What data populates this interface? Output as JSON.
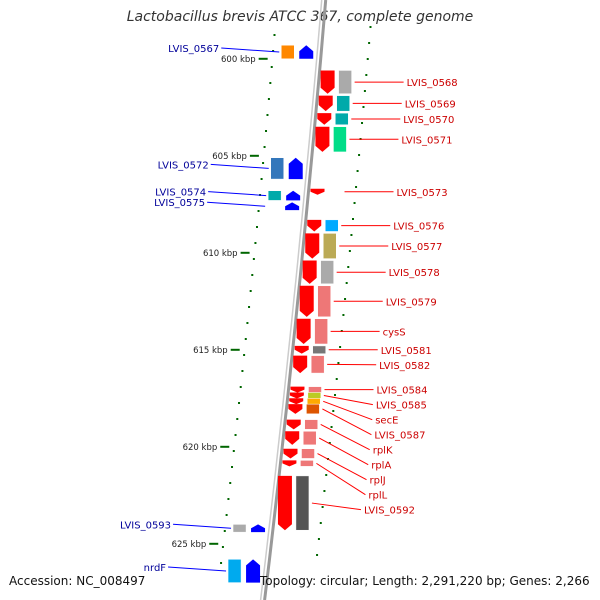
{
  "title": "Lactobacillus brevis ATCC 367, complete genome",
  "footer": {
    "accession": "Accession: NC_008497",
    "topology": "Topology: circular; Length: 2,291,220 bp; Genes: 2,266"
  },
  "scale": [
    {
      "label": "600 kbp",
      "kbp": 600
    },
    {
      "label": "605 kbp",
      "kbp": 605
    },
    {
      "label": "610 kbp",
      "kbp": 610
    },
    {
      "label": "615 kbp",
      "kbp": 615
    },
    {
      "label": "620 kbp",
      "kbp": 620
    },
    {
      "label": "625 kbp",
      "kbp": 625
    }
  ],
  "colors": {
    "forward_gene": "#ff0000",
    "reverse_gene": "#0000ff",
    "forward_label": "#cc0000",
    "reverse_label": "#000099",
    "backbone": "#999999",
    "tick": "#006600"
  },
  "forward_genes": [
    {
      "label": "LVIS_0568",
      "start": 600.6,
      "end": 601.8,
      "cog": "#aaaaaa"
    },
    {
      "label": "LVIS_0569",
      "start": 601.9,
      "end": 602.7,
      "cog": "#00aaaa"
    },
    {
      "label": "LVIS_0570",
      "start": 602.8,
      "end": 603.4,
      "cog": "#00aaaa"
    },
    {
      "label": "LVIS_0571",
      "start": 603.5,
      "end": 604.8,
      "cog": "#00dd88"
    },
    {
      "label": "LVIS_0573",
      "start": 606.7,
      "end": 606.9,
      "cog": ""
    },
    {
      "label": "LVIS_0576",
      "start": 608.3,
      "end": 608.9,
      "cog": "#00aaff"
    },
    {
      "label": "LVIS_0577",
      "start": 609.0,
      "end": 610.3,
      "cog": "#bbaa55"
    },
    {
      "label": "LVIS_0578",
      "start": 610.4,
      "end": 611.6,
      "cog": "#aaaaaa"
    },
    {
      "label": "LVIS_0579",
      "start": 611.7,
      "end": 613.3,
      "cog": "#ee7777"
    },
    {
      "label": "cysS",
      "start": 613.4,
      "end": 614.7,
      "cog": "#ee7777"
    },
    {
      "label": "LVIS_0581",
      "start": 614.8,
      "end": 615.2,
      "cog": "#777777"
    },
    {
      "label": "LVIS_0582",
      "start": 615.3,
      "end": 616.2,
      "cog": "#ee7777"
    },
    {
      "label": "LVIS_0584",
      "start": 616.9,
      "end": 617.1,
      "cog": "#ee7777"
    },
    {
      "label": "LVIS_0585",
      "start": 617.2,
      "end": 617.4,
      "cog": "#bbcc22"
    },
    {
      "label": "secE",
      "start": 617.5,
      "end": 617.7,
      "cog": "#ffaa00"
    },
    {
      "label": "LVIS_0587",
      "start": 617.8,
      "end": 618.3,
      "cog": "#dd5500"
    },
    {
      "label": "rplK",
      "start": 618.6,
      "end": 619.1,
      "cog": "#ee7777"
    },
    {
      "label": "rplA",
      "start": 619.2,
      "end": 619.9,
      "cog": "#ee7777"
    },
    {
      "label": "rplJ",
      "start": 620.1,
      "end": 620.6,
      "cog": "#ee7777"
    },
    {
      "label": "rplL",
      "start": 620.7,
      "end": 621.0,
      "cog": "#ee7777"
    },
    {
      "label": "LVIS_0592",
      "start": 621.5,
      "end": 624.3,
      "cog": "#555555"
    }
  ],
  "reverse_genes": [
    {
      "label": "LVIS_0567",
      "start": 599.3,
      "end": 600.0,
      "cog": "#ff8800"
    },
    {
      "label": "LVIS_0572",
      "start": 605.1,
      "end": 606.2,
      "cog": "#3377bb"
    },
    {
      "label": "LVIS_0574",
      "start": 606.8,
      "end": 607.3,
      "cog": "#00aaaa"
    },
    {
      "label": "LVIS_0575",
      "start": 607.4,
      "end": 607.8,
      "cog": ""
    },
    {
      "label": "LVIS_0593",
      "start": 624.0,
      "end": 624.4,
      "cog": "#aaaaaa"
    },
    {
      "label": "nrdF",
      "start": 625.8,
      "end": 627.0,
      "cog": "#00aaee"
    }
  ]
}
